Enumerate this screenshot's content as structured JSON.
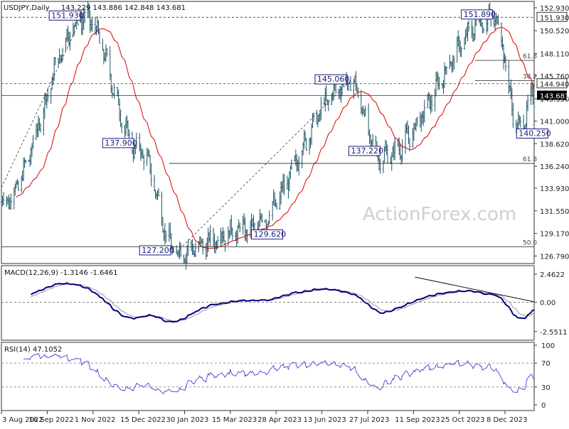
{
  "header": {
    "symbol": "USDJPY,Daily",
    "ohlc": "143.229 143.886 142.848 143.681"
  },
  "watermark": "ActionForex.com",
  "chart_data": [
    {
      "type": "candlestick",
      "price_axis": {
        "range": [
          126.0,
          153.6
        ],
        "ticks": [
          "152.930",
          "150.520",
          "148.110",
          "145.760",
          "143.350",
          "141.000",
          "138.620",
          "136.240",
          "133.930",
          "131.550",
          "129.170",
          "126.790"
        ],
        "tick_values": [
          152.93,
          150.52,
          148.11,
          145.76,
          143.35,
          141.0,
          138.62,
          136.24,
          133.93,
          131.55,
          129.17,
          126.79
        ]
      },
      "x_ticks": [
        "3 Aug 2022",
        "16 Sep 2022",
        "1 Nov 2022",
        "15 Dec 2022",
        "30 Jan 2023",
        "15 Mar 2023",
        "28 Apr 2023",
        "13 Jun 2023",
        "27 Jul 2023",
        "11 Sep 2023",
        "25 Oct 2023",
        "8 Dec 2023"
      ],
      "current_price": {
        "value": 143.681,
        "label": "143.681"
      },
      "level_tags": [
        {
          "value": 151.93,
          "label": "151.930"
        },
        {
          "value": 144.94,
          "label": "144.940"
        }
      ],
      "pivots": [
        {
          "date": "2022-10-21",
          "value": 151.93,
          "label": "151.930"
        },
        {
          "date": "2022-12-12",
          "value": 137.9,
          "label": "137.900"
        },
        {
          "date": "2023-01-16",
          "value": 127.2,
          "label": "127.200"
        },
        {
          "date": "2023-03-24",
          "value": 129.62,
          "label": "129.620"
        },
        {
          "date": "2023-06-30",
          "value": 145.06,
          "label": "145.060"
        },
        {
          "date": "2023-07-28",
          "value": 137.22,
          "label": "137.220"
        },
        {
          "date": "2023-11-13",
          "value": 151.89,
          "label": "151.890"
        },
        {
          "date": "2023-12-07",
          "value": 140.25,
          "label": "140.250"
        }
      ],
      "fib_levels": [
        {
          "value": 147.39,
          "label": "61.8"
        },
        {
          "value": 145.27,
          "label": "38.2"
        },
        {
          "value": 136.54,
          "label": "61.8"
        },
        {
          "value": 127.76,
          "label": "50.0"
        }
      ],
      "horizontal_lines": [
        {
          "value": 151.93,
          "style": "dashed"
        },
        {
          "value": 144.94,
          "style": "dashed"
        },
        {
          "value": 143.681,
          "style": "solid"
        }
      ],
      "moving_average_color": "#dd0000",
      "candle_color": "#1f5566"
    },
    {
      "type": "line",
      "title": "MACD(12,26,9) -1.3146 -1.6461",
      "y_ticks": [
        "2.4622",
        "0.00",
        "-2.5511"
      ],
      "y_values": [
        2.4622,
        0.0,
        -2.5511
      ],
      "series_colors": {
        "macd": "#000080",
        "signal": "#999999"
      }
    },
    {
      "type": "line",
      "title": "RSI(14) 47.1052",
      "y_ticks": [
        "100",
        "70",
        "30",
        "0"
      ],
      "y_values": [
        100,
        70,
        30,
        0
      ],
      "levels": [
        70,
        30
      ],
      "series_color": "#2a2ad0"
    }
  ]
}
